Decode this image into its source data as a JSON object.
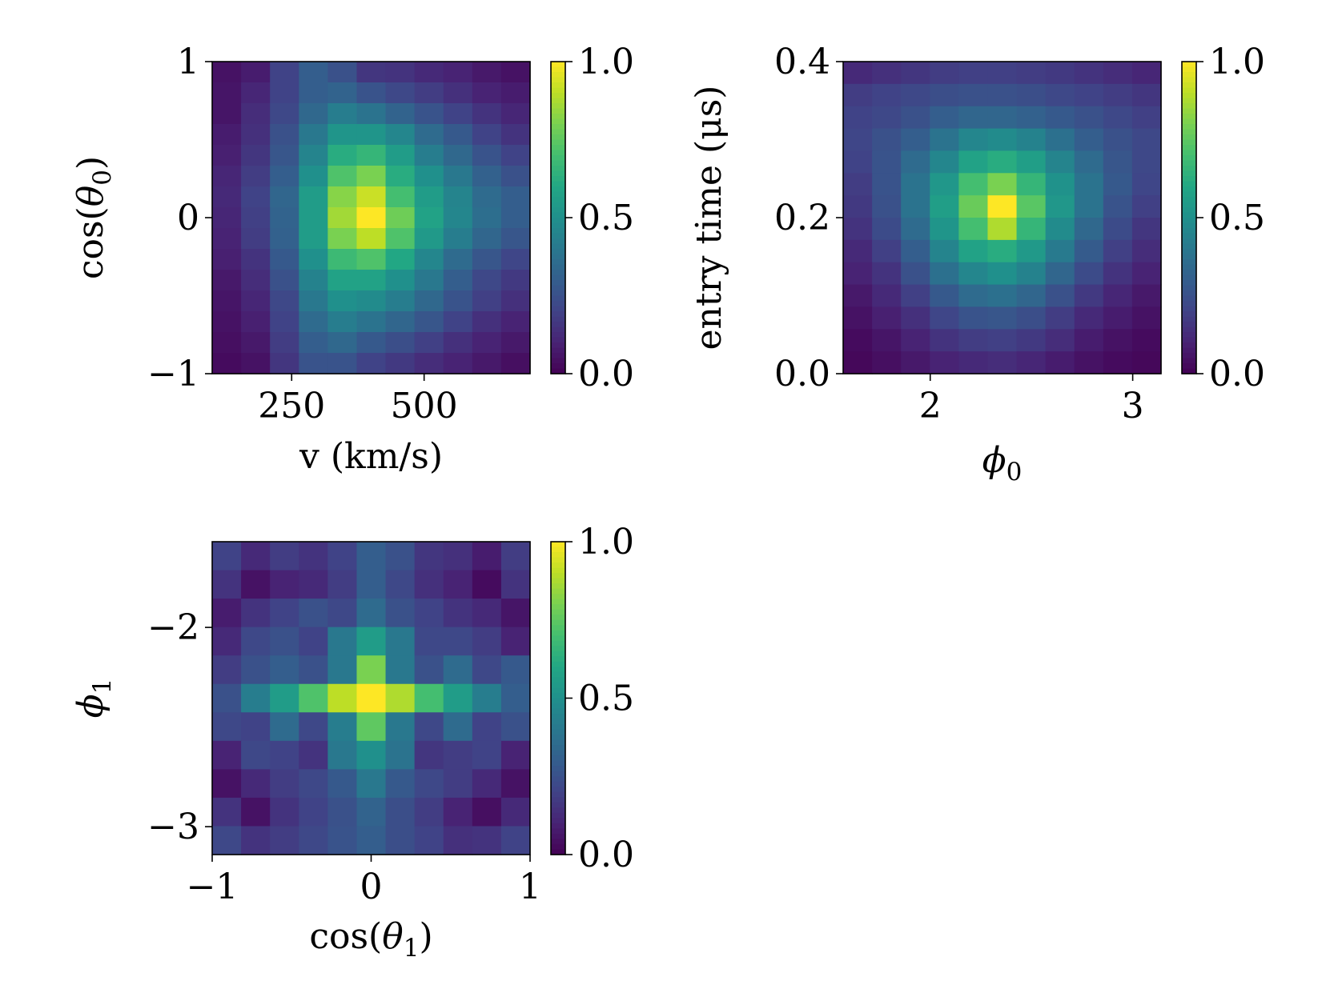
{
  "chart_data": [
    {
      "type": "heatmap",
      "xlabel": "v (km/s)",
      "ylabel": {
        "text": "cos(",
        "symbol": "θ",
        "subscript": "0",
        "suffix": ")"
      },
      "xlim": [
        100,
        700
      ],
      "ylim": [
        -1,
        1
      ],
      "xticks": [
        250,
        500
      ],
      "xtick_labels": [
        "250",
        "500"
      ],
      "yticks": [
        -1,
        0,
        1
      ],
      "ytick_labels": [
        "−1",
        "0",
        "1"
      ],
      "colorbar": {
        "ticks": [
          0.0,
          0.5,
          1.0
        ],
        "labels": [
          "0.0",
          "0.5",
          "1.0"
        ],
        "range": [
          0,
          1
        ]
      },
      "grid": [
        [
          0.05,
          0.08,
          0.2,
          0.3,
          0.25,
          0.16,
          0.15,
          0.12,
          0.1,
          0.07,
          0.05
        ],
        [
          0.06,
          0.11,
          0.2,
          0.3,
          0.32,
          0.26,
          0.22,
          0.18,
          0.14,
          0.1,
          0.08
        ],
        [
          0.06,
          0.13,
          0.22,
          0.34,
          0.42,
          0.38,
          0.32,
          0.26,
          0.2,
          0.15,
          0.11
        ],
        [
          0.08,
          0.14,
          0.25,
          0.4,
          0.52,
          0.52,
          0.46,
          0.35,
          0.28,
          0.2,
          0.15
        ],
        [
          0.09,
          0.16,
          0.27,
          0.45,
          0.62,
          0.66,
          0.55,
          0.42,
          0.34,
          0.26,
          0.2
        ],
        [
          0.11,
          0.18,
          0.3,
          0.5,
          0.72,
          0.8,
          0.62,
          0.5,
          0.4,
          0.31,
          0.25
        ],
        [
          0.12,
          0.2,
          0.33,
          0.55,
          0.82,
          0.92,
          0.7,
          0.55,
          0.45,
          0.35,
          0.3
        ],
        [
          0.11,
          0.19,
          0.32,
          0.55,
          0.86,
          1.0,
          0.78,
          0.58,
          0.46,
          0.36,
          0.3
        ],
        [
          0.1,
          0.18,
          0.31,
          0.55,
          0.8,
          0.9,
          0.72,
          0.54,
          0.42,
          0.33,
          0.27
        ],
        [
          0.09,
          0.15,
          0.28,
          0.5,
          0.68,
          0.72,
          0.6,
          0.46,
          0.35,
          0.27,
          0.21
        ],
        [
          0.07,
          0.13,
          0.25,
          0.44,
          0.58,
          0.58,
          0.5,
          0.4,
          0.3,
          0.22,
          0.17
        ],
        [
          0.06,
          0.11,
          0.22,
          0.4,
          0.5,
          0.48,
          0.42,
          0.34,
          0.26,
          0.19,
          0.14
        ],
        [
          0.05,
          0.09,
          0.2,
          0.35,
          0.42,
          0.38,
          0.33,
          0.27,
          0.2,
          0.14,
          0.1
        ],
        [
          0.04,
          0.07,
          0.18,
          0.3,
          0.34,
          0.28,
          0.24,
          0.19,
          0.14,
          0.1,
          0.07
        ],
        [
          0.03,
          0.05,
          0.16,
          0.26,
          0.26,
          0.2,
          0.17,
          0.13,
          0.1,
          0.07,
          0.04
        ]
      ]
    },
    {
      "type": "heatmap",
      "xlabel": {
        "symbol": "ϕ",
        "subscript": "0"
      },
      "ylabel": "entry time (μs)",
      "xlim": [
        1.57,
        3.14
      ],
      "ylim": [
        0.0,
        0.4
      ],
      "xticks": [
        2,
        3
      ],
      "xtick_labels": [
        "2",
        "3"
      ],
      "yticks": [
        0.0,
        0.2,
        0.4
      ],
      "ytick_labels": [
        "0.0",
        "0.2",
        "0.4"
      ],
      "colorbar": {
        "ticks": [
          0.0,
          0.5,
          1.0
        ],
        "labels": [
          "0.0",
          "0.5",
          "1.0"
        ],
        "range": [
          0,
          1
        ]
      },
      "grid": [
        [
          0.12,
          0.14,
          0.16,
          0.18,
          0.19,
          0.19,
          0.18,
          0.17,
          0.15,
          0.13,
          0.11
        ],
        [
          0.18,
          0.2,
          0.22,
          0.24,
          0.25,
          0.25,
          0.24,
          0.22,
          0.2,
          0.18,
          0.16
        ],
        [
          0.2,
          0.22,
          0.25,
          0.3,
          0.33,
          0.33,
          0.31,
          0.28,
          0.25,
          0.22,
          0.19
        ],
        [
          0.21,
          0.25,
          0.3,
          0.38,
          0.46,
          0.48,
          0.44,
          0.37,
          0.3,
          0.25,
          0.22
        ],
        [
          0.2,
          0.26,
          0.35,
          0.46,
          0.58,
          0.62,
          0.56,
          0.45,
          0.35,
          0.27,
          0.22
        ],
        [
          0.18,
          0.26,
          0.38,
          0.53,
          0.7,
          0.8,
          0.66,
          0.51,
          0.38,
          0.28,
          0.21
        ],
        [
          0.17,
          0.25,
          0.38,
          0.56,
          0.77,
          1.0,
          0.74,
          0.53,
          0.38,
          0.26,
          0.19
        ],
        [
          0.15,
          0.23,
          0.35,
          0.52,
          0.7,
          0.88,
          0.66,
          0.48,
          0.34,
          0.23,
          0.16
        ],
        [
          0.12,
          0.19,
          0.3,
          0.45,
          0.58,
          0.62,
          0.54,
          0.41,
          0.29,
          0.19,
          0.13
        ],
        [
          0.1,
          0.15,
          0.25,
          0.37,
          0.46,
          0.5,
          0.44,
          0.33,
          0.23,
          0.15,
          0.1
        ],
        [
          0.07,
          0.12,
          0.19,
          0.28,
          0.35,
          0.37,
          0.33,
          0.25,
          0.17,
          0.11,
          0.07
        ],
        [
          0.05,
          0.09,
          0.14,
          0.21,
          0.26,
          0.27,
          0.24,
          0.18,
          0.12,
          0.08,
          0.05
        ],
        [
          0.03,
          0.06,
          0.1,
          0.15,
          0.18,
          0.19,
          0.17,
          0.13,
          0.08,
          0.05,
          0.03
        ],
        [
          0.02,
          0.04,
          0.07,
          0.1,
          0.12,
          0.13,
          0.11,
          0.08,
          0.05,
          0.03,
          0.02
        ]
      ]
    },
    {
      "type": "heatmap",
      "xlabel": {
        "text": "cos(",
        "symbol": "θ",
        "subscript": "1",
        "suffix": ")"
      },
      "ylabel": {
        "symbol": "ϕ",
        "subscript": "1"
      },
      "xlim": [
        -1,
        1
      ],
      "ylim": [
        -3.14,
        -1.57
      ],
      "xticks": [
        -1,
        0,
        1
      ],
      "xtick_labels": [
        "−1",
        "0",
        "1"
      ],
      "yticks": [
        -2,
        -3
      ],
      "ytick_labels": [
        "−2",
        "−3"
      ],
      "colorbar": {
        "ticks": [
          0.0,
          0.5,
          1.0
        ],
        "labels": [
          "0.0",
          "0.5",
          "1.0"
        ],
        "range": [
          0,
          1
        ]
      },
      "grid": [
        [
          0.2,
          0.12,
          0.18,
          0.15,
          0.2,
          0.3,
          0.25,
          0.16,
          0.14,
          0.08,
          0.18
        ],
        [
          0.15,
          0.05,
          0.1,
          0.12,
          0.18,
          0.3,
          0.22,
          0.14,
          0.1,
          0.03,
          0.15
        ],
        [
          0.08,
          0.15,
          0.2,
          0.25,
          0.22,
          0.35,
          0.25,
          0.2,
          0.15,
          0.12,
          0.06
        ],
        [
          0.12,
          0.22,
          0.25,
          0.2,
          0.4,
          0.55,
          0.4,
          0.22,
          0.22,
          0.18,
          0.1
        ],
        [
          0.18,
          0.25,
          0.3,
          0.25,
          0.4,
          0.8,
          0.4,
          0.25,
          0.35,
          0.22,
          0.28
        ],
        [
          0.25,
          0.42,
          0.55,
          0.72,
          0.9,
          1.0,
          0.88,
          0.7,
          0.55,
          0.42,
          0.3
        ],
        [
          0.22,
          0.2,
          0.35,
          0.22,
          0.42,
          0.75,
          0.4,
          0.22,
          0.35,
          0.2,
          0.25
        ],
        [
          0.1,
          0.22,
          0.2,
          0.15,
          0.4,
          0.5,
          0.38,
          0.16,
          0.18,
          0.2,
          0.1
        ],
        [
          0.05,
          0.12,
          0.18,
          0.22,
          0.28,
          0.4,
          0.28,
          0.22,
          0.18,
          0.12,
          0.05
        ],
        [
          0.15,
          0.05,
          0.15,
          0.2,
          0.25,
          0.32,
          0.24,
          0.18,
          0.1,
          0.04,
          0.12
        ],
        [
          0.22,
          0.15,
          0.18,
          0.22,
          0.26,
          0.3,
          0.24,
          0.2,
          0.14,
          0.15,
          0.2
        ]
      ]
    }
  ]
}
